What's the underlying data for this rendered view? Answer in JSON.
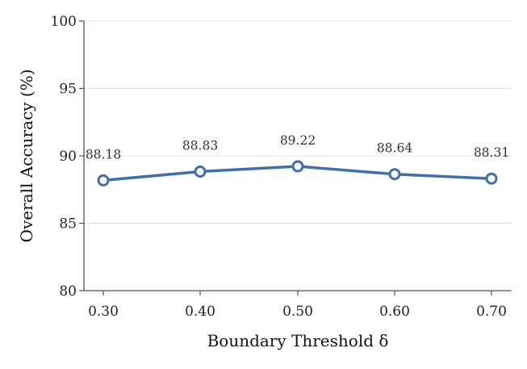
{
  "chart_data": {
    "type": "line",
    "title": "",
    "xlabel": "Boundary Threshold δ",
    "ylabel": "Overall Accuracy (%)",
    "categories": [
      "0.30",
      "0.40",
      "0.50",
      "0.60",
      "0.70"
    ],
    "series": [
      {
        "values": [
          88.18,
          88.83,
          89.22,
          88.64,
          88.31
        ]
      }
    ],
    "data_labels": [
      "88.18",
      "88.83",
      "89.22",
      "88.64",
      "88.31"
    ],
    "y_ticks": [
      "80",
      "85",
      "90",
      "95",
      "100"
    ],
    "ylim": [
      80,
      100
    ],
    "grid": "horizontal",
    "legend": "none",
    "colors": {
      "line": "#3f6fac",
      "marker_fill": "#ffffff",
      "grid": "#dde3ec",
      "axis": "#555555"
    }
  }
}
